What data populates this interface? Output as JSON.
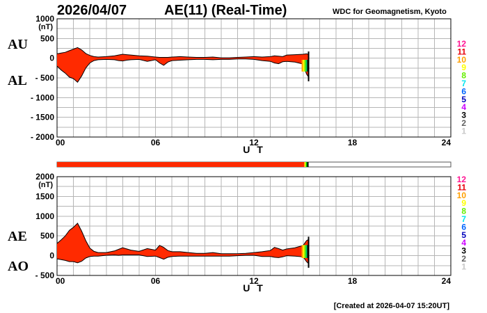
{
  "header": {
    "date": "2026/04/07",
    "title": "AE(11) (Real-Time)",
    "source": "WDC for Geomagnetism, Kyoto"
  },
  "footer": {
    "created": "[Created at 2026-04-07 15:20UT]"
  },
  "colors": {
    "fill": "#ff2a00",
    "grid": "#b5b5b5",
    "trace": "#000000"
  },
  "station_legend": [
    {
      "label": "12",
      "color": "#ff1493"
    },
    {
      "label": "11",
      "color": "#e8000b"
    },
    {
      "label": "10",
      "color": "#ff9f00"
    },
    {
      "label": "9",
      "color": "#ffff00"
    },
    {
      "label": "8",
      "color": "#66ee00"
    },
    {
      "label": "7",
      "color": "#00e5ee"
    },
    {
      "label": "6",
      "color": "#0066ff"
    },
    {
      "label": "5",
      "color": "#0000bb"
    },
    {
      "label": "4",
      "color": "#cc00ff"
    },
    {
      "label": "3",
      "color": "#000000"
    },
    {
      "label": "2",
      "color": "#606060"
    },
    {
      "label": "1",
      "color": "#c8c8c8"
    }
  ],
  "coverage_bar": {
    "filled_until_ut": 15.33,
    "colors": [
      "#ff2a00",
      "#ffff00",
      "#00cc00",
      "#000000"
    ]
  },
  "chart_data": [
    {
      "type": "area",
      "series_labels": [
        "AU",
        "AL"
      ],
      "unit": "(nT)",
      "xlabel": "U T",
      "xlim": [
        0,
        24
      ],
      "ylim": [
        -2000,
        1000
      ],
      "xticks": [
        "00",
        "06",
        "12",
        "18",
        "24"
      ],
      "yticks": [
        {
          "value": 1000,
          "label": "1000"
        },
        {
          "value": 500,
          "label": "500"
        },
        {
          "value": 0,
          "label": "0"
        },
        {
          "value": -500,
          "label": "- 500"
        },
        {
          "value": -1000,
          "label": "- 1000"
        },
        {
          "value": -1500,
          "label": "- 1500"
        },
        {
          "value": -2000,
          "label": "- 2000"
        }
      ],
      "grid": true,
      "ut": [
        0,
        0.25,
        0.5,
        0.75,
        1.0,
        1.25,
        1.5,
        1.75,
        2.0,
        2.25,
        2.5,
        3.0,
        3.5,
        3.75,
        4.0,
        4.25,
        4.5,
        5.0,
        5.5,
        6.0,
        6.25,
        6.5,
        6.75,
        7.0,
        7.5,
        8.0,
        8.5,
        9.0,
        9.5,
        10.0,
        10.5,
        11.0,
        11.5,
        12.0,
        12.5,
        13.0,
        13.25,
        13.5,
        13.75,
        14.0,
        14.5,
        15.0,
        15.2,
        15.33
      ],
      "au": [
        110,
        130,
        150,
        190,
        230,
        270,
        210,
        120,
        70,
        40,
        30,
        40,
        60,
        80,
        100,
        90,
        80,
        60,
        50,
        30,
        20,
        20,
        20,
        30,
        40,
        30,
        20,
        20,
        30,
        10,
        10,
        20,
        30,
        40,
        30,
        40,
        60,
        50,
        40,
        80,
        90,
        100,
        110,
        100
      ],
      "al": [
        -200,
        -300,
        -380,
        -480,
        -520,
        -610,
        -450,
        -250,
        -120,
        -60,
        -40,
        -30,
        -40,
        -60,
        -70,
        -50,
        -40,
        -30,
        -80,
        -40,
        -120,
        -180,
        -100,
        -60,
        -50,
        -40,
        -30,
        -30,
        -40,
        -30,
        -30,
        -20,
        -20,
        -30,
        -60,
        -80,
        -120,
        -140,
        -90,
        -80,
        -100,
        -150,
        -400,
        -480
      ]
    },
    {
      "type": "area",
      "series_labels": [
        "AE",
        "AO"
      ],
      "unit": "(nT)",
      "xlabel": "U T",
      "xlim": [
        0,
        24
      ],
      "ylim": [
        -500,
        2000
      ],
      "xticks": [
        "00",
        "06",
        "12",
        "18",
        "24"
      ],
      "yticks": [
        {
          "value": 2000,
          "label": "2000"
        },
        {
          "value": 1500,
          "label": "1500"
        },
        {
          "value": 1000,
          "label": "1000"
        },
        {
          "value": 500,
          "label": "500"
        },
        {
          "value": 0,
          "label": "0"
        },
        {
          "value": -500,
          "label": "- 500"
        }
      ],
      "grid": true,
      "ut": [
        0,
        0.25,
        0.5,
        0.75,
        1.0,
        1.25,
        1.5,
        1.75,
        2.0,
        2.25,
        2.5,
        3.0,
        3.5,
        3.75,
        4.0,
        4.25,
        4.5,
        5.0,
        5.5,
        6.0,
        6.25,
        6.5,
        6.75,
        7.0,
        7.5,
        8.0,
        8.5,
        9.0,
        9.5,
        10.0,
        10.5,
        11.0,
        11.5,
        12.0,
        12.5,
        13.0,
        13.25,
        13.5,
        13.75,
        14.0,
        14.5,
        15.0,
        15.2,
        15.33
      ],
      "ae": [
        310,
        400,
        500,
        640,
        720,
        820,
        620,
        380,
        190,
        110,
        80,
        80,
        120,
        160,
        200,
        170,
        140,
        110,
        180,
        140,
        260,
        210,
        130,
        100,
        100,
        80,
        60,
        60,
        80,
        50,
        50,
        50,
        60,
        80,
        100,
        130,
        210,
        180,
        140,
        170,
        200,
        260,
        380,
        410
      ],
      "ao": [
        -80,
        -100,
        -120,
        -150,
        -150,
        -180,
        -140,
        -60,
        -20,
        -10,
        -10,
        10,
        20,
        10,
        20,
        20,
        20,
        20,
        -20,
        -10,
        -50,
        -90,
        -40,
        -20,
        -10,
        -10,
        -10,
        -10,
        -10,
        -10,
        -10,
        0,
        10,
        10,
        -20,
        -20,
        -40,
        -50,
        -30,
        0,
        -10,
        -30,
        -150,
        -200
      ]
    }
  ]
}
